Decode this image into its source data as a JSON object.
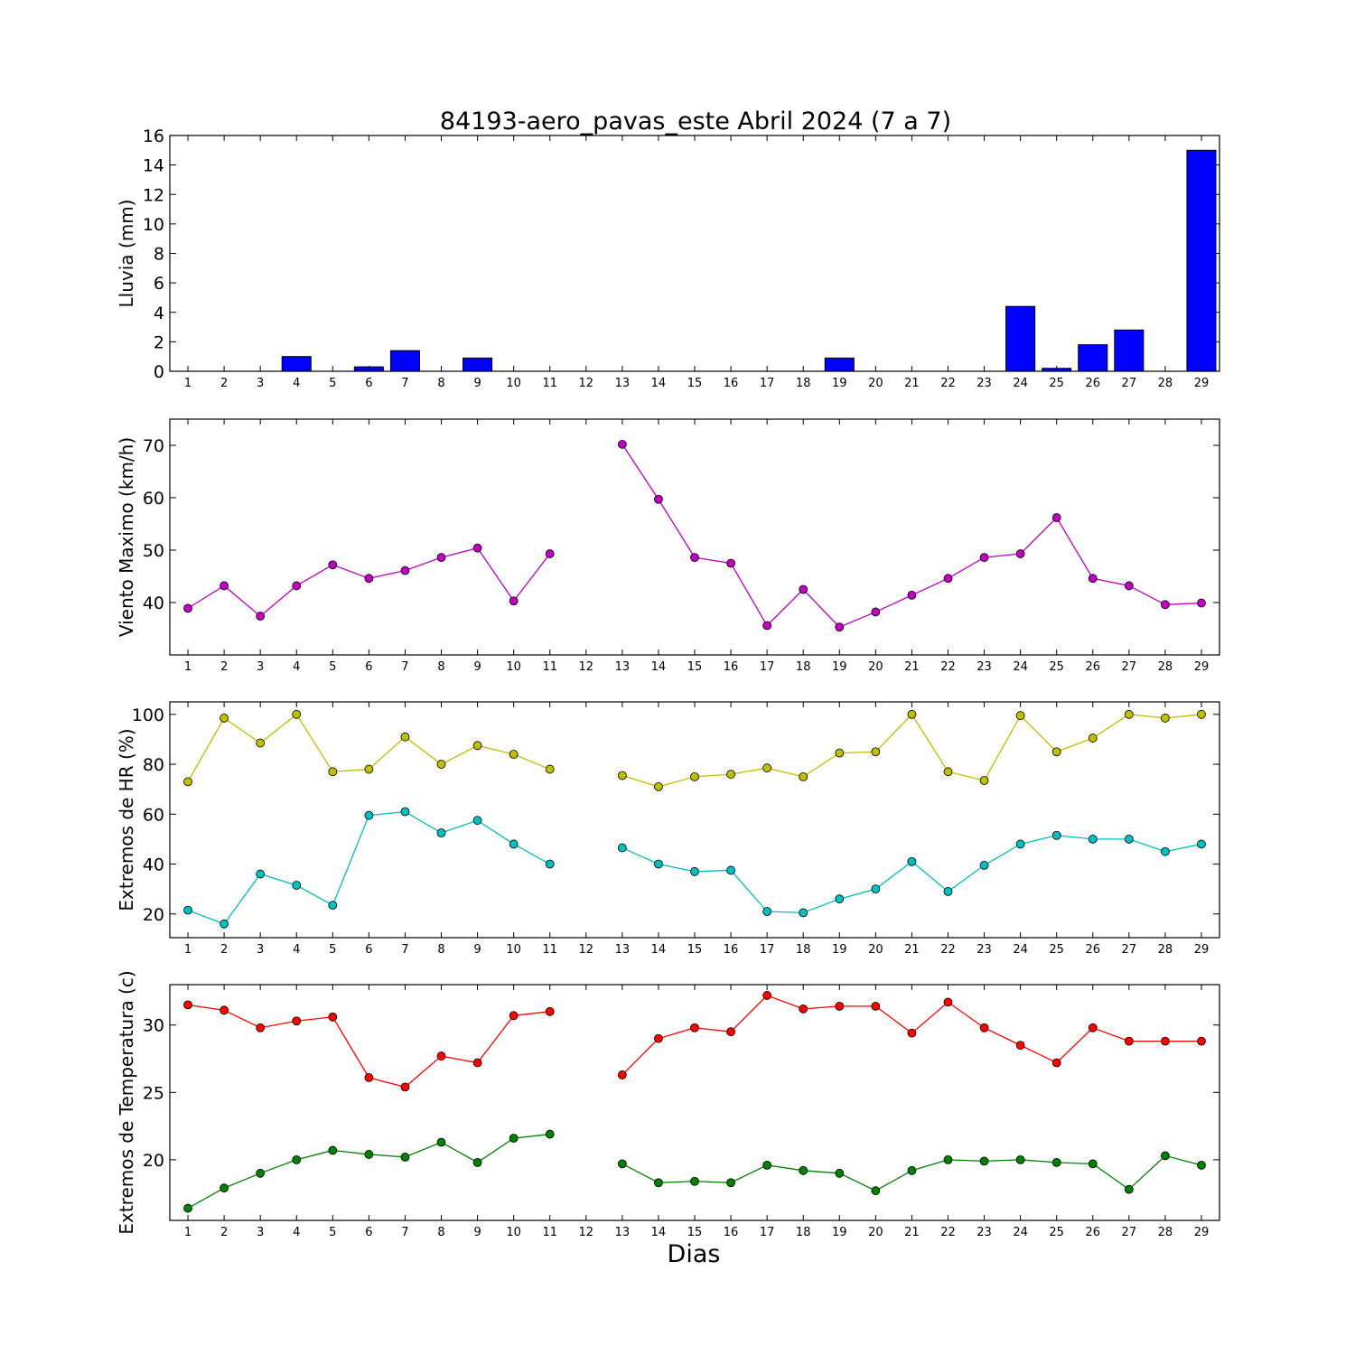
{
  "title": "84193-aero_pavas_este Abril 2024  (7 a 7)",
  "xlabel": "Dias",
  "chart_data": [
    {
      "type": "bar",
      "ylabel": "Lluvia (mm)",
      "ylim": [
        0,
        16
      ],
      "yticks": [
        0,
        2,
        4,
        6,
        8,
        10,
        12,
        14,
        16
      ],
      "categories": [
        1,
        2,
        3,
        4,
        5,
        6,
        7,
        8,
        9,
        10,
        11,
        12,
        13,
        14,
        15,
        16,
        17,
        18,
        19,
        20,
        21,
        22,
        23,
        24,
        25,
        26,
        27,
        28,
        29
      ],
      "color": "#0000ff",
      "values": [
        0,
        0,
        0,
        1.0,
        0,
        0.3,
        1.4,
        null,
        0.9,
        0,
        0,
        0,
        0,
        0,
        0,
        0,
        0,
        0,
        0.9,
        0,
        0,
        0,
        0,
        4.4,
        0.2,
        1.8,
        2.8,
        null,
        15.0
      ]
    },
    {
      "type": "line",
      "ylabel": "Viento Maximo (km/h)",
      "ylim": [
        30,
        75
      ],
      "yticks": [
        40,
        50,
        60,
        70
      ],
      "x": [
        1,
        2,
        3,
        4,
        5,
        6,
        7,
        8,
        9,
        10,
        11,
        12,
        13,
        14,
        15,
        16,
        17,
        18,
        19,
        20,
        21,
        22,
        23,
        24,
        25,
        26,
        27,
        28,
        29
      ],
      "series": [
        {
          "color": "#bf00bf",
          "values": [
            38.9,
            43.2,
            37.4,
            43.2,
            47.2,
            44.6,
            46.1,
            48.6,
            50.4,
            40.3,
            49.3,
            null,
            70.2,
            59.7,
            48.6,
            47.5,
            35.6,
            42.5,
            35.3,
            38.2,
            41.4,
            44.6,
            48.6,
            49.3,
            56.2,
            44.6,
            43.2,
            39.6,
            39.9
          ]
        }
      ]
    },
    {
      "type": "line",
      "ylabel": "Extremos de HR (%)",
      "ylim": [
        10.5,
        105
      ],
      "yticks": [
        20,
        40,
        60,
        80,
        100
      ],
      "x": [
        1,
        2,
        3,
        4,
        5,
        6,
        7,
        8,
        9,
        10,
        11,
        12,
        13,
        14,
        15,
        16,
        17,
        18,
        19,
        20,
        21,
        22,
        23,
        24,
        25,
        26,
        27,
        28,
        29
      ],
      "series": [
        {
          "color": "#bfbf00",
          "values": [
            73,
            98.5,
            88.5,
            100,
            77,
            78,
            91,
            80,
            87.5,
            84,
            78,
            null,
            75.5,
            71,
            75,
            76,
            78.5,
            75,
            84.5,
            85,
            100,
            77,
            73.5,
            99.5,
            85,
            90.5,
            100,
            98.5,
            100
          ]
        },
        {
          "color": "#00bfbf",
          "values": [
            21.5,
            16,
            36,
            31.5,
            23.5,
            59.5,
            61,
            52.5,
            57.5,
            48,
            40,
            null,
            46.5,
            40,
            37,
            37.5,
            21,
            20.5,
            26,
            30,
            41,
            29,
            39.5,
            48,
            51.5,
            50,
            50,
            45,
            48
          ]
        }
      ]
    },
    {
      "type": "line",
      "ylabel": "Extremos de Temperatura (c)",
      "ylim": [
        15.5,
        33
      ],
      "yticks": [
        20,
        25,
        30
      ],
      "x": [
        1,
        2,
        3,
        4,
        5,
        6,
        7,
        8,
        9,
        10,
        11,
        12,
        13,
        14,
        15,
        16,
        17,
        18,
        19,
        20,
        21,
        22,
        23,
        24,
        25,
        26,
        27,
        28,
        29
      ],
      "series": [
        {
          "color": "#ff0000",
          "values": [
            31.5,
            31.1,
            29.8,
            30.3,
            30.6,
            26.1,
            25.4,
            27.7,
            27.2,
            30.7,
            31.0,
            null,
            26.3,
            29.0,
            29.8,
            29.5,
            32.2,
            31.2,
            31.4,
            31.4,
            29.4,
            31.7,
            29.8,
            28.5,
            27.2,
            29.8,
            28.8,
            28.8,
            28.8
          ]
        },
        {
          "color": "#008000",
          "values": [
            16.4,
            17.9,
            19.0,
            20.0,
            20.7,
            20.4,
            20.2,
            21.3,
            19.8,
            21.6,
            21.9,
            null,
            19.7,
            18.3,
            18.4,
            18.3,
            19.6,
            19.2,
            19.0,
            17.7,
            19.2,
            20.0,
            19.9,
            20.0,
            19.8,
            19.7,
            17.8,
            20.3,
            19.6
          ]
        }
      ]
    }
  ]
}
